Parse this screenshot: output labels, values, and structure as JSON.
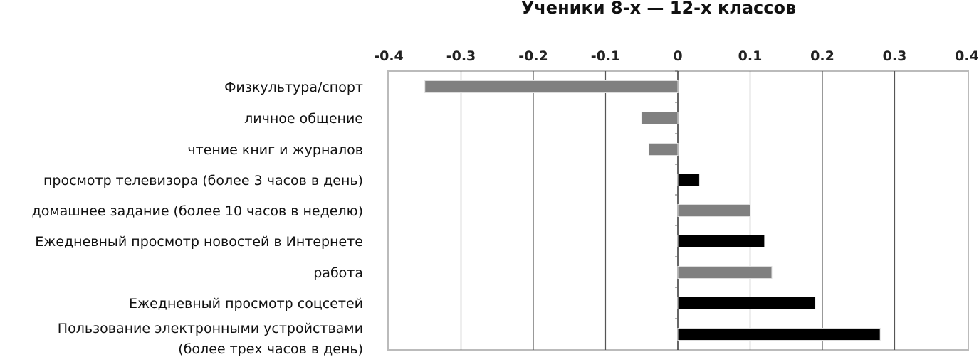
{
  "chart_data": {
    "type": "bar",
    "orientation": "horizontal",
    "title": "Ученики 8-х — 12-х классов",
    "xlim": [
      -0.4,
      0.4
    ],
    "xticks": [
      "-0.4",
      "-0.3",
      "-0.2",
      "-0.1",
      "0",
      "0.1",
      "0.2",
      "0.3",
      "0.4"
    ],
    "grid": true,
    "categories": [
      [
        "Физкультура/спорт"
      ],
      [
        "личное общение"
      ],
      [
        "чтение книг и журналов"
      ],
      [
        "просмотр телевизора (более 3 часов в день)"
      ],
      [
        "домашнее задание (более 10 часов в неделю)"
      ],
      [
        "Ежедневный просмотр новостей в Интернете"
      ],
      [
        "работа"
      ],
      [
        "Ежедневный просмотр соцсетей"
      ],
      [
        "Пользование электронными устройствами",
        "(более трех часов в день)"
      ]
    ],
    "values": [
      -0.35,
      -0.05,
      -0.04,
      0.03,
      0.1,
      0.12,
      0.13,
      0.19,
      0.28
    ],
    "bar_colors": [
      "#808080",
      "#808080",
      "#808080",
      "#000000",
      "#808080",
      "#000000",
      "#808080",
      "#000000",
      "#000000"
    ]
  }
}
